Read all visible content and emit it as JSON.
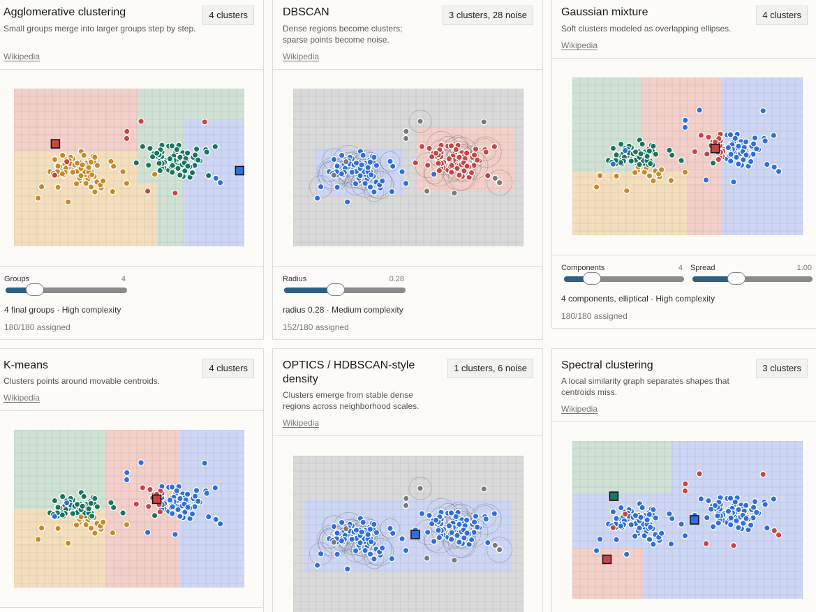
{
  "cards": [
    {
      "key": "agglo",
      "title": "Agglomerative clustering",
      "description": "Small groups merge into larger groups step by step.",
      "link": "Wikipedia",
      "badge": "4 clusters",
      "sliders": [
        {
          "label": "Groups",
          "value": "4",
          "fraction": 0.25
        }
      ],
      "summary": "4 final groups · High complexity",
      "assigned": "180/180 assigned"
    },
    {
      "key": "dbscan",
      "title": "DBSCAN",
      "description": "Dense regions become clusters; sparse points become noise.",
      "link": "Wikipedia",
      "badge": "3 clusters, 28 noise",
      "sliders": [
        {
          "label": "Radius",
          "value": "0.28",
          "fraction": 0.47
        }
      ],
      "summary": "radius 0.28 · Medium complexity",
      "assigned": "152/180 assigned"
    },
    {
      "key": "gmm",
      "title": "Gaussian mixture",
      "description": "Soft clusters modeled as overlapping ellipses.",
      "link": "Wikipedia",
      "badge": "4 clusters",
      "sliders": [
        {
          "label": "Components",
          "value": "4",
          "fraction": 0.25
        },
        {
          "label": "Spread",
          "value": "1.00",
          "fraction": 0.37
        }
      ],
      "summary": "4 components, elliptical · High complexity",
      "assigned": "180/180 assigned"
    },
    {
      "key": "kmeans",
      "title": "K-means",
      "description": "Clusters points around movable centroids.",
      "link": "Wikipedia",
      "badge": "4 clusters"
    },
    {
      "key": "optics",
      "title": "OPTICS / HDBSCAN-style density",
      "description": "Clusters emerge from stable dense regions across neighborhood scales.",
      "link": "Wikipedia",
      "badge": "1 clusters, 6 noise"
    },
    {
      "key": "spectral",
      "title": "Spectral clustering",
      "description": "A local similarity graph separates shapes that centroids miss.",
      "link": "Wikipedia",
      "badge": "3 clusters"
    }
  ],
  "colors": {
    "red": "#c94444",
    "green": "#1a7561",
    "blue": "#2f6fdd",
    "orange": "#c78a26",
    "noise": "#7a7a7a",
    "red_bg": "#f2cfc9",
    "green_bg": "#cfe1d4",
    "blue_bg": "#cdd6f4",
    "orange_bg": "#f3dfbd",
    "gray_bg": "#d9d9d9",
    "accent": "#2d5f84"
  }
}
